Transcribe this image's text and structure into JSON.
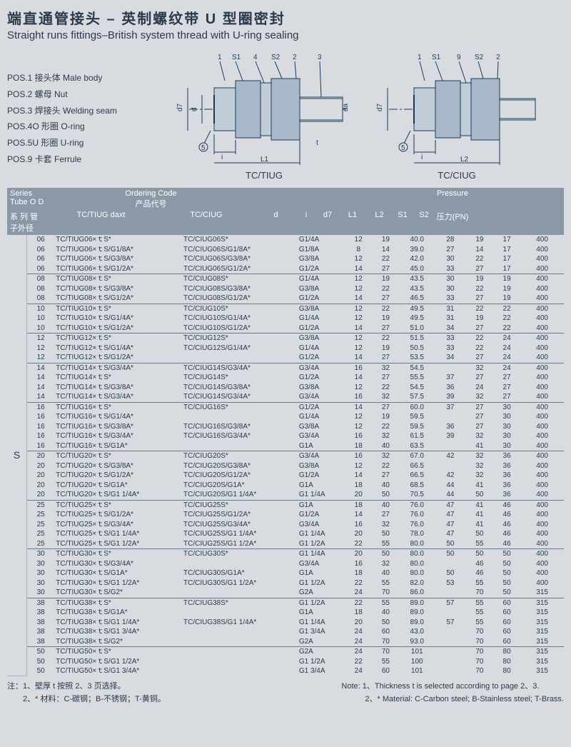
{
  "title_cn": "端直通管接头 – 英制螺纹带 U 型圈密封",
  "title_en": "Straight runs fittings–British system thread with U-ring sealing",
  "pos_items": [
    "POS.1 接头体 Male body",
    "POS.2 螺母 Nut",
    "POS.3 焊接头 Welding seam",
    "POS.4O 形圈 O-ring",
    "POS.5U 形圈 U-ring",
    "POS.9 卡套 Ferrule"
  ],
  "diagram_labels": {
    "left": "TC/TIUG",
    "right": "TC/CIUG"
  },
  "diagram_callouts": {
    "left": [
      "1",
      "S1",
      "4",
      "S2",
      "2",
      "3",
      "5",
      "i",
      "L1",
      "d7",
      "d",
      "da",
      "t"
    ],
    "right": [
      "1",
      "S1",
      "9",
      "S2",
      "2",
      "5",
      "i",
      "L2",
      "d7"
    ]
  },
  "header": {
    "series": "Series Tube O D",
    "series_cn": "系 列  管子外径",
    "ordering": "Ordering Code",
    "ordering_cn": "产品代号",
    "col_tiug": "TC/TIUG daxt",
    "col_ciug": "TC/CIUG",
    "d": "d",
    "i": "i",
    "d7": "d7",
    "L1": "L1",
    "L2": "L2",
    "S1": "S1",
    "S2": "S2",
    "pressure": "Pressure",
    "pressure_cn": "压力(PN)"
  },
  "series_label": "S",
  "col_widths": {
    "series": 20,
    "od": 30,
    "tiug": 155,
    "ciug": 140,
    "d": 55,
    "i": 30,
    "d7": 30,
    "L1": 40,
    "L2": 35,
    "S1": 30,
    "S2": 30,
    "pn": 50
  },
  "rows": [
    {
      "od": "06",
      "tiug": "TC/TIUG06×ｔS*",
      "ciug": "TC/CIUG06S*",
      "d": "G1/4A",
      "i": "12",
      "d7": "19",
      "L1": "40.0",
      "L2": "28",
      "S1": "19",
      "S2": "17",
      "pn": "400"
    },
    {
      "od": "06",
      "tiug": "TC/TIUG06×ｔS/G1/8A*",
      "ciug": "TC/CIUG06S/G1/8A*",
      "d": "G1/8A",
      "i": "8",
      "d7": "14",
      "L1": "39.0",
      "L2": "27",
      "S1": "14",
      "S2": "17",
      "pn": "400"
    },
    {
      "od": "06",
      "tiug": "TC/TIUG06×ｔS/G3/8A*",
      "ciug": "TC/CIUG06S/G3/8A*",
      "d": "G3/8A",
      "i": "12",
      "d7": "22",
      "L1": "42.0",
      "L2": "30",
      "S1": "22",
      "S2": "17",
      "pn": "400"
    },
    {
      "od": "06",
      "tiug": "TC/TIUG06×ｔS/G1/2A*",
      "ciug": "TC/CIUG06S/G1/2A*",
      "d": "G1/2A",
      "i": "14",
      "d7": "27",
      "L1": "45.0",
      "L2": "33",
      "S1": "27",
      "S2": "17",
      "pn": "400"
    },
    {
      "od": "08",
      "tiug": "TC/TIUG08×ｔS*",
      "ciug": "TC/CIUG08S*",
      "d": "G1/4A",
      "i": "12",
      "d7": "19",
      "L1": "43.5",
      "L2": "30",
      "S1": "19",
      "S2": "19",
      "pn": "400"
    },
    {
      "od": "08",
      "tiug": "TC/TIUG08×ｔS/G3/8A*",
      "ciug": "TC/CIUG08S/G3/8A*",
      "d": "G3/8A",
      "i": "12",
      "d7": "22",
      "L1": "43.5",
      "L2": "30",
      "S1": "22",
      "S2": "19",
      "pn": "400"
    },
    {
      "od": "08",
      "tiug": "TC/TIUG08×ｔS/G1/2A*",
      "ciug": "TC/CIUG08S/G1/2A*",
      "d": "G1/2A",
      "i": "14",
      "d7": "27",
      "L1": "46.5",
      "L2": "33",
      "S1": "27",
      "S2": "19",
      "pn": "400"
    },
    {
      "od": "10",
      "tiug": "TC/TIUG10×ｔS*",
      "ciug": "TC/CIUG10S*",
      "d": "G3/8A",
      "i": "12",
      "d7": "22",
      "L1": "49.5",
      "L2": "31",
      "S1": "22",
      "S2": "22",
      "pn": "400"
    },
    {
      "od": "10",
      "tiug": "TC/TIUG10×ｔS/G1/4A*",
      "ciug": "TC/CIUG10S/G1/4A*",
      "d": "G1/4A",
      "i": "12",
      "d7": "19",
      "L1": "49.5",
      "L2": "31",
      "S1": "19",
      "S2": "22",
      "pn": "400"
    },
    {
      "od": "10",
      "tiug": "TC/TIUG10×ｔS/G1/2A*",
      "ciug": "TC/CIUG10S/G1/2A*",
      "d": "G1/2A",
      "i": "14",
      "d7": "27",
      "L1": "51.0",
      "L2": "34",
      "S1": "27",
      "S2": "22",
      "pn": "400"
    },
    {
      "od": "12",
      "tiug": "TC/TIUG12×ｔS*",
      "ciug": "TC/CIUG12S*",
      "d": "G3/8A",
      "i": "12",
      "d7": "22",
      "L1": "51.5",
      "L2": "33",
      "S1": "22",
      "S2": "24",
      "pn": "400"
    },
    {
      "od": "12",
      "tiug": "TC/TIUG12×ｔS/G1/4A*",
      "ciug": "TC/CIUG12S/G1/4A*",
      "d": "G1/4A",
      "i": "12",
      "d7": "19",
      "L1": "50.5",
      "L2": "33",
      "S1": "22",
      "S2": "24",
      "pn": "400"
    },
    {
      "od": "12",
      "tiug": "TC/TIUG12×ｔS/G1/2A*",
      "ciug": "",
      "d": "G1/2A",
      "i": "14",
      "d7": "27",
      "L1": "53.5",
      "L2": "34",
      "S1": "27",
      "S2": "24",
      "pn": "400"
    },
    {
      "od": "14",
      "tiug": "TC/TIUG14×ｔS/G3/4A*",
      "ciug": "TC/CIUG14S/G3/4A*",
      "d": "G3/4A",
      "i": "16",
      "d7": "32",
      "L1": "54.5",
      "L2": "",
      "S1": "32",
      "S2": "24",
      "pn": "400"
    },
    {
      "od": "14",
      "tiug": "TC/TIUG14×ｔS*",
      "ciug": "TC/CIUG14S*",
      "d": "G1/2A",
      "i": "14",
      "d7": "27",
      "L1": "55.5",
      "L2": "37",
      "S1": "27",
      "S2": "27",
      "pn": "400"
    },
    {
      "od": "14",
      "tiug": "TC/TIUG14×ｔS/G3/8A*",
      "ciug": "TC/CIUG14S/G3/8A*",
      "d": "G3/8A",
      "i": "12",
      "d7": "22",
      "L1": "54.5",
      "L2": "36",
      "S1": "24",
      "S2": "27",
      "pn": "400"
    },
    {
      "od": "14",
      "tiug": "TC/TIUG14×ｔS/G3/4A*",
      "ciug": "TC/CIUG14S/G3/4A*",
      "d": "G3/4A",
      "i": "16",
      "d7": "32",
      "L1": "57.5",
      "L2": "39",
      "S1": "32",
      "S2": "27",
      "pn": "400"
    },
    {
      "od": "16",
      "tiug": "TC/TIUG16×ｔS*",
      "ciug": "TC/CIUG16S*",
      "d": "G1/2A",
      "i": "14",
      "d7": "27",
      "L1": "60.0",
      "L2": "37",
      "S1": "27",
      "S2": "30",
      "pn": "400"
    },
    {
      "od": "16",
      "tiug": "TC/TIUG16×ｔS/G1/4A*",
      "ciug": "",
      "d": "G1/4A",
      "i": "12",
      "d7": "19",
      "L1": "59.5",
      "L2": "",
      "S1": "27",
      "S2": "30",
      "pn": "400"
    },
    {
      "od": "16",
      "tiug": "TC/TIUG16×ｔS/G3/8A*",
      "ciug": "TC/CIUG16S/G3/8A*",
      "d": "G3/8A",
      "i": "12",
      "d7": "22",
      "L1": "59.5",
      "L2": "36",
      "S1": "27",
      "S2": "30",
      "pn": "400"
    },
    {
      "od": "16",
      "tiug": "TC/TIUG16×ｔS/G3/4A*",
      "ciug": "TC/CIUG16S/G3/4A*",
      "d": "G3/4A",
      "i": "16",
      "d7": "32",
      "L1": "61.5",
      "L2": "39",
      "S1": "32",
      "S2": "30",
      "pn": "400"
    },
    {
      "od": "16",
      "tiug": "TC/TIUG16×ｔS/G1A*",
      "ciug": "",
      "d": "G1A",
      "i": "18",
      "d7": "40",
      "L1": "63.5",
      "L2": "",
      "S1": "41",
      "S2": "30",
      "pn": "400"
    },
    {
      "od": "20",
      "tiug": "TC/TIUG20×ｔS*",
      "ciug": "TC/CIUG20S*",
      "d": "G3/4A",
      "i": "16",
      "d7": "32",
      "L1": "67.0",
      "L2": "42",
      "S1": "32",
      "S2": "36",
      "pn": "400"
    },
    {
      "od": "20",
      "tiug": "TC/TIUG20×ｔS/G3/8A*",
      "ciug": "TC/CIUG20S/G3/8A*",
      "d": "G3/8A",
      "i": "12",
      "d7": "22",
      "L1": "66.5",
      "L2": "",
      "S1": "32",
      "S2": "36",
      "pn": "400"
    },
    {
      "od": "20",
      "tiug": "TC/TIUG20×ｔS/G1/2A*",
      "ciug": "TC/CIUG20S/G1/2A*",
      "d": "G1/2A",
      "i": "14",
      "d7": "27",
      "L1": "66.5",
      "L2": "42",
      "S1": "32",
      "S2": "36",
      "pn": "400"
    },
    {
      "od": "20",
      "tiug": "TC/TIUG20×ｔS/G1A*",
      "ciug": "TC/CIUG20S/G1A*",
      "d": "G1A",
      "i": "18",
      "d7": "40",
      "L1": "68.5",
      "L2": "44",
      "S1": "41",
      "S2": "36",
      "pn": "400"
    },
    {
      "od": "20",
      "tiug": "TC/TIUG20×ｔS/G1 1/4A*",
      "ciug": "TC/CIUG20S/G1 1/4A*",
      "d": "G1 1/4A",
      "i": "20",
      "d7": "50",
      "L1": "70.5",
      "L2": "44",
      "S1": "50",
      "S2": "36",
      "pn": "400"
    },
    {
      "od": "25",
      "tiug": "TC/TIUG25×ｔS*",
      "ciug": "TC/CIUG25S*",
      "d": "G1A",
      "i": "18",
      "d7": "40",
      "L1": "76.0",
      "L2": "47",
      "S1": "41",
      "S2": "46",
      "pn": "400"
    },
    {
      "od": "25",
      "tiug": "TC/TIUG25×ｔS/G1/2A*",
      "ciug": "TC/CIUG25S/G1/2A*",
      "d": "G1/2A",
      "i": "14",
      "d7": "27",
      "L1": "76.0",
      "L2": "47",
      "S1": "41",
      "S2": "46",
      "pn": "400"
    },
    {
      "od": "25",
      "tiug": "TC/TIUG25×ｔS/G3/4A*",
      "ciug": "TC/CIUG25S/G3/4A*",
      "d": "G3/4A",
      "i": "16",
      "d7": "32",
      "L1": "76.0",
      "L2": "47",
      "S1": "41",
      "S2": "46",
      "pn": "400"
    },
    {
      "od": "25",
      "tiug": "TC/TIUG25×ｔS/G1 1/4A*",
      "ciug": "TC/CIUG25S/G1 1/4A*",
      "d": "G1 1/4A",
      "i": "20",
      "d7": "50",
      "L1": "78.0",
      "L2": "47",
      "S1": "50",
      "S2": "46",
      "pn": "400"
    },
    {
      "od": "25",
      "tiug": "TC/TIUG25×ｔS/G1 1/2A*",
      "ciug": "TC/CIUG25S/G1 1/2A*",
      "d": "G1 1/2A",
      "i": "22",
      "d7": "55",
      "L1": "80.0",
      "L2": "50",
      "S1": "55",
      "S2": "46",
      "pn": "400"
    },
    {
      "od": "30",
      "tiug": "TC/TIUG30×ｔS*",
      "ciug": "TC/CIUG30S*",
      "d": "G1 1/4A",
      "i": "20",
      "d7": "50",
      "L1": "80.0",
      "L2": "50",
      "S1": "50",
      "S2": "50",
      "pn": "400"
    },
    {
      "od": "30",
      "tiug": "TC/TIUG30×ｔS/G3/4A*",
      "ciug": "",
      "d": "G3/4A",
      "i": "16",
      "d7": "32",
      "L1": "80.0",
      "L2": "",
      "S1": "46",
      "S2": "50",
      "pn": "400"
    },
    {
      "od": "30",
      "tiug": "TC/TIUG30×ｔS/G1A*",
      "ciug": "TC/CIUG30S/G1A*",
      "d": "G1A",
      "i": "18",
      "d7": "40",
      "L1": "80.0",
      "L2": "50",
      "S1": "46",
      "S2": "50",
      "pn": "400"
    },
    {
      "od": "30",
      "tiug": "TC/TIUG30×ｔS/G1 1/2A*",
      "ciug": "TC/CIUG30S/G1 1/2A*",
      "d": "G1 1/2A",
      "i": "22",
      "d7": "55",
      "L1": "82.0",
      "L2": "53",
      "S1": "55",
      "S2": "50",
      "pn": "400"
    },
    {
      "od": "30",
      "tiug": "TC/TIUG30×ｔS/G2*",
      "ciug": "",
      "d": "G2A",
      "i": "24",
      "d7": "70",
      "L1": "86.0",
      "L2": "",
      "S1": "70",
      "S2": "50",
      "pn": "315"
    },
    {
      "od": "38",
      "tiug": "TC/TIUG38×ｔS*",
      "ciug": "TC/CIUG38S*",
      "d": "G1 1/2A",
      "i": "22",
      "d7": "55",
      "L1": "89.0",
      "L2": "57",
      "S1": "55",
      "S2": "60",
      "pn": "315"
    },
    {
      "od": "38",
      "tiug": "TC/TIUG38×ｔS/G1A*",
      "ciug": "",
      "d": "G1A",
      "i": "18",
      "d7": "40",
      "L1": "89.0",
      "L2": "",
      "S1": "55",
      "S2": "60",
      "pn": "315"
    },
    {
      "od": "38",
      "tiug": "TC/TIUG38×ｔS/G1 1/4A*",
      "ciug": "TC/CIUG38S/G1 1/4A*",
      "d": "G1 1/4A",
      "i": "20",
      "d7": "50",
      "L1": "89.0",
      "L2": "57",
      "S1": "55",
      "S2": "60",
      "pn": "315"
    },
    {
      "od": "38",
      "tiug": "TC/TIUG38×ｔS/G1 3/4A*",
      "ciug": "",
      "d": "G1 3/4A",
      "i": "24",
      "d7": "60",
      "L1": "43.0",
      "L2": "",
      "S1": "70",
      "S2": "60",
      "pn": "315"
    },
    {
      "od": "38",
      "tiug": "TC/TIUG38×ｔS/G2*",
      "ciug": "",
      "d": "G2A",
      "i": "24",
      "d7": "70",
      "L1": "93.0",
      "L2": "",
      "S1": "70",
      "S2": "60",
      "pn": "315"
    },
    {
      "od": "50",
      "tiug": "TC/TIUG50×ｔS*",
      "ciug": "",
      "d": "G2A",
      "i": "24",
      "d7": "70",
      "L1": "101",
      "L2": "",
      "S1": "70",
      "S2": "80",
      "pn": "315"
    },
    {
      "od": "50",
      "tiug": "TC/TIUG50×ｔS/G1 1/2A*",
      "ciug": "",
      "d": "G1 1/2A",
      "i": "22",
      "d7": "55",
      "L1": "100",
      "L2": "",
      "S1": "70",
      "S2": "80",
      "pn": "315"
    },
    {
      "od": "50",
      "tiug": "TC/TIUG50×ｔS/G1 3/4A*",
      "ciug": "",
      "d": "G1 3/4A",
      "i": "24",
      "d7": "60",
      "L1": "101",
      "L2": "",
      "S1": "70",
      "S2": "80",
      "pn": "315"
    }
  ],
  "od_borders_after": [
    3,
    6,
    9,
    12,
    16,
    21,
    26,
    31,
    36,
    41
  ],
  "notes": {
    "cn1": "注：1、壁厚 t 按照 2、3 页选择。",
    "cn2": "　　2、* 材料：C-碳钢；B-不锈钢；T-黄铜。",
    "en1": "Note: 1、Thickness t is selected according to page 2、3.",
    "en2": "　　　2、* Material: C-Carbon steel; B-Stainless steel; T-Brass."
  }
}
